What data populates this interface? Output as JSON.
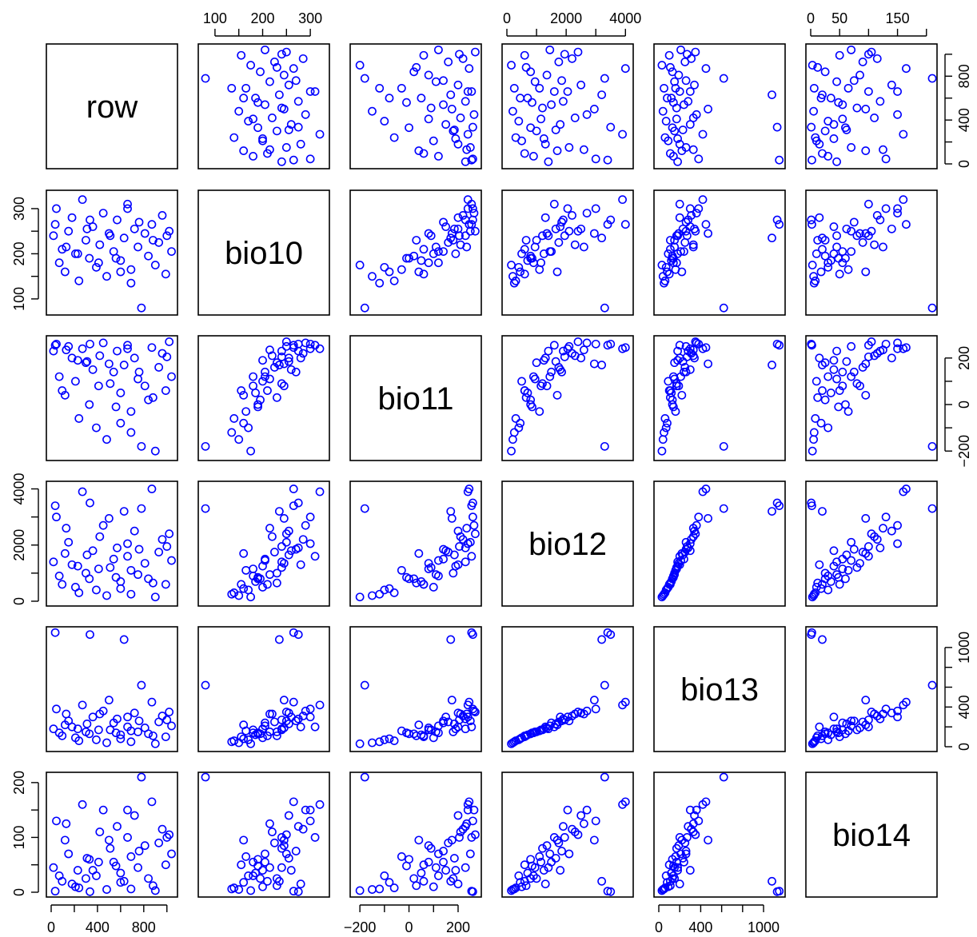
{
  "chart_data": {
    "type": "scatter",
    "plot_kind": "scatterplot-matrix",
    "variables": [
      "row",
      "bio10",
      "bio11",
      "bio12",
      "bio13",
      "bio14"
    ],
    "point_style": {
      "marker": "open-circle",
      "color": "#0000ff"
    },
    "axes": {
      "row": {
        "range": [
          0,
          1050
        ],
        "ticks": [
          0,
          200,
          400,
          600,
          800,
          1000
        ],
        "tick_labels": [
          "0",
          "",
          "400",
          "",
          "800",
          ""
        ],
        "bottom_tick_labels": [
          "0",
          "400",
          "800"
        ],
        "right_tick_labels": [
          "0",
          "400",
          "800"
        ],
        "label_sides": [
          "bottom",
          "right"
        ]
      },
      "bio10": {
        "range": [
          75,
          330
        ],
        "ticks": [
          100,
          150,
          200,
          250,
          300
        ],
        "tick_labels": [
          "100",
          "",
          "200",
          "",
          "300"
        ],
        "label_sides": [
          "top",
          "left"
        ]
      },
      "bio11": {
        "range": [
          -220,
          275
        ],
        "ticks": [
          -200,
          -100,
          0,
          100,
          200
        ],
        "tick_labels": [
          "−200",
          "",
          "0",
          "",
          "200"
        ],
        "label_sides": [
          "bottom",
          "right"
        ]
      },
      "bio12": {
        "range": [
          0,
          4100
        ],
        "ticks": [
          0,
          1000,
          2000,
          3000,
          4000
        ],
        "tick_labels": [
          "0",
          "",
          "2000",
          "",
          "4000"
        ],
        "label_sides": [
          "top",
          "left"
        ]
      },
      "bio13": {
        "range": [
          0,
          1160
        ],
        "ticks": [
          0,
          200,
          400,
          600,
          800,
          1000
        ],
        "tick_labels": [
          "0",
          "",
          "400",
          "",
          "",
          "1000"
        ],
        "bottom_tick_labels": [
          "0",
          "400",
          "1000"
        ],
        "right_tick_labels": [
          "0",
          "400",
          "1000"
        ],
        "label_sides": [
          "bottom",
          "right"
        ]
      },
      "bio14": {
        "range": [
          0,
          210
        ],
        "ticks": [
          0,
          50,
          100,
          150,
          200
        ],
        "tick_labels": [
          "0",
          "50",
          "",
          "150",
          ""
        ],
        "top_tick_labels": [
          "0",
          "50",
          "150"
        ],
        "left_tick_labels": [
          "0",
          "100",
          "200"
        ],
        "label_sides": [
          "top",
          "left"
        ]
      }
    },
    "description": "Pairwise scatter plots of the variables; row/col diagonal panels show the variable name. Each off-diagonal panel (i,j) plots column variable j on x against row variable i on y.",
    "series": [
      {
        "name": "observations",
        "points": [
          {
            "row": 20,
            "bio10": 240,
            "bio11": 230,
            "bio12": 1400,
            "bio13": 180,
            "bio14": 45
          },
          {
            "row": 45,
            "bio10": 300,
            "bio11": 260,
            "bio12": 3000,
            "bio13": 380,
            "bio14": 130
          },
          {
            "row": 70,
            "bio10": 180,
            "bio11": 120,
            "bio12": 900,
            "bio13": 140,
            "bio14": 30
          },
          {
            "row": 95,
            "bio10": 210,
            "bio11": 60,
            "bio12": 600,
            "bio13": 110,
            "bio14": 20
          },
          {
            "row": 120,
            "bio10": 160,
            "bio11": 40,
            "bio12": 1700,
            "bio13": 220,
            "bio14": 95
          },
          {
            "row": 150,
            "bio10": 250,
            "bio11": 250,
            "bio12": 2100,
            "bio13": 260,
            "bio14": 70
          },
          {
            "row": 180,
            "bio10": 280,
            "bio11": 200,
            "bio12": 1300,
            "bio13": 200,
            "bio14": 15
          },
          {
            "row": 210,
            "bio10": 200,
            "bio11": 100,
            "bio12": 500,
            "bio13": 90,
            "bio14": 10
          },
          {
            "row": 240,
            "bio10": 140,
            "bio11": -60,
            "bio12": 300,
            "bio13": 60,
            "bio14": 8
          },
          {
            "row": 270,
            "bio10": 320,
            "bio11": 240,
            "bio12": 3900,
            "bio13": 420,
            "bio14": 160
          },
          {
            "row": 300,
            "bio10": 230,
            "bio11": 180,
            "bio12": 1000,
            "bio13": 150,
            "bio14": 25
          },
          {
            "row": 330,
            "bio10": 190,
            "bio11": 0,
            "bio12": 800,
            "bio13": 130,
            "bio14": 60
          },
          {
            "row": 360,
            "bio10": 260,
            "bio11": 150,
            "bio12": 1800,
            "bio13": 300,
            "bio14": 40
          },
          {
            "row": 390,
            "bio10": 170,
            "bio11": -100,
            "bio12": 400,
            "bio13": 70,
            "bio14": 30
          },
          {
            "row": 420,
            "bio10": 220,
            "bio11": 210,
            "bio12": 2300,
            "bio13": 330,
            "bio14": 110
          },
          {
            "row": 450,
            "bio10": 290,
            "bio11": 265,
            "bio12": 2700,
            "bio13": 360,
            "bio14": 150
          },
          {
            "row": 480,
            "bio10": 150,
            "bio11": -150,
            "bio12": 200,
            "bio13": 40,
            "bio14": 5
          },
          {
            "row": 510,
            "bio10": 240,
            "bio11": 90,
            "bio12": 1200,
            "bio13": 170,
            "bio14": 80
          },
          {
            "row": 540,
            "bio10": 205,
            "bio11": 140,
            "bio12": 1500,
            "bio13": 240,
            "bio14": 55
          },
          {
            "row": 570,
            "bio10": 275,
            "bio11": 230,
            "bio12": 1900,
            "bio13": 280,
            "bio14": 120
          },
          {
            "row": 600,
            "bio10": 185,
            "bio11": 50,
            "bio12": 700,
            "bio13": 120,
            "bio14": 35
          },
          {
            "row": 630,
            "bio10": 235,
            "bio11": 170,
            "bio12": 3200,
            "bio13": 1080,
            "bio14": 20
          },
          {
            "row": 660,
            "bio10": 310,
            "bio11": 255,
            "bio12": 1600,
            "bio13": 200,
            "bio14": 100
          },
          {
            "row": 690,
            "bio10": 165,
            "bio11": -30,
            "bio12": 1100,
            "bio13": 160,
            "bio14": 65
          },
          {
            "row": 720,
            "bio10": 255,
            "bio11": 200,
            "bio12": 2500,
            "bio13": 340,
            "bio14": 140
          },
          {
            "row": 750,
            "bio10": 215,
            "bio11": 110,
            "bio12": 950,
            "bio13": 150,
            "bio14": 45
          },
          {
            "row": 780,
            "bio10": 80,
            "bio11": -180,
            "bio12": 3300,
            "bio13": 620,
            "bio14": 210
          },
          {
            "row": 810,
            "bio10": 245,
            "bio11": 80,
            "bio12": 1350,
            "bio13": 190,
            "bio14": 85
          },
          {
            "row": 840,
            "bio10": 195,
            "bio11": 20,
            "bio12": 800,
            "bio13": 130,
            "bio14": 25
          },
          {
            "row": 870,
            "bio10": 265,
            "bio11": 245,
            "bio12": 4000,
            "bio13": 450,
            "bio14": 165
          },
          {
            "row": 900,
            "bio10": 175,
            "bio11": -200,
            "bio12": 150,
            "bio13": 30,
            "bio14": 3
          },
          {
            "row": 930,
            "bio10": 225,
            "bio11": 160,
            "bio12": 1750,
            "bio13": 250,
            "bio14": 90
          },
          {
            "row": 960,
            "bio10": 285,
            "bio11": 220,
            "bio12": 2200,
            "bio13": 310,
            "bio14": 115
          },
          {
            "row": 990,
            "bio10": 155,
            "bio11": 60,
            "bio12": 600,
            "bio13": 100,
            "bio14": 50
          },
          {
            "row": 1020,
            "bio10": 250,
            "bio11": 270,
            "bio12": 2400,
            "bio13": 350,
            "bio14": 105
          },
          {
            "row": 1040,
            "bio10": 205,
            "bio11": 120,
            "bio12": 1450,
            "bio13": 210,
            "bio14": 70
          },
          {
            "row": 35,
            "bio10": 265,
            "bio11": 255,
            "bio12": 3400,
            "bio13": 1150,
            "bio14": 2
          },
          {
            "row": 335,
            "bio10": 275,
            "bio11": 260,
            "bio12": 3500,
            "bio13": 1130,
            "bio14": 1
          },
          {
            "row": 500,
            "bio10": 245,
            "bio11": 175,
            "bio12": 2950,
            "bio13": 470,
            "bio14": 95
          },
          {
            "row": 660,
            "bio10": 300,
            "bio11": 240,
            "bio12": 2050,
            "bio13": 300,
            "bio14": 150
          },
          {
            "row": 230,
            "bio10": 200,
            "bio11": 190,
            "bio12": 1250,
            "bio13": 180,
            "bio14": 40
          },
          {
            "row": 880,
            "bio10": 230,
            "bio11": 30,
            "bio12": 650,
            "bio13": 110,
            "bio14": 12
          },
          {
            "row": 760,
            "bio10": 270,
            "bio11": 140,
            "bio12": 1850,
            "bio13": 260,
            "bio14": 75
          },
          {
            "row": 410,
            "bio10": 180,
            "bio11": 80,
            "bio12": 1150,
            "bio13": 170,
            "bio14": 55
          },
          {
            "row": 600,
            "bio10": 160,
            "bio11": -80,
            "bio12": 450,
            "bio13": 80,
            "bio14": 18
          },
          {
            "row": 130,
            "bio10": 215,
            "bio11": 235,
            "bio12": 2600,
            "bio13": 330,
            "bio14": 125
          },
          {
            "row": 1000,
            "bio10": 240,
            "bio11": 205,
            "bio12": 1950,
            "bio13": 270,
            "bio14": 100
          },
          {
            "row": 560,
            "bio10": 190,
            "bio11": -10,
            "bio12": 850,
            "bio13": 140,
            "bio14": 48
          },
          {
            "row": 310,
            "bio10": 255,
            "bio11": 185,
            "bio12": 1650,
            "bio13": 230,
            "bio14": 62
          },
          {
            "row": 690,
            "bio10": 135,
            "bio11": -120,
            "bio12": 250,
            "bio13": 50,
            "bio14": 6
          }
        ]
      }
    ]
  }
}
